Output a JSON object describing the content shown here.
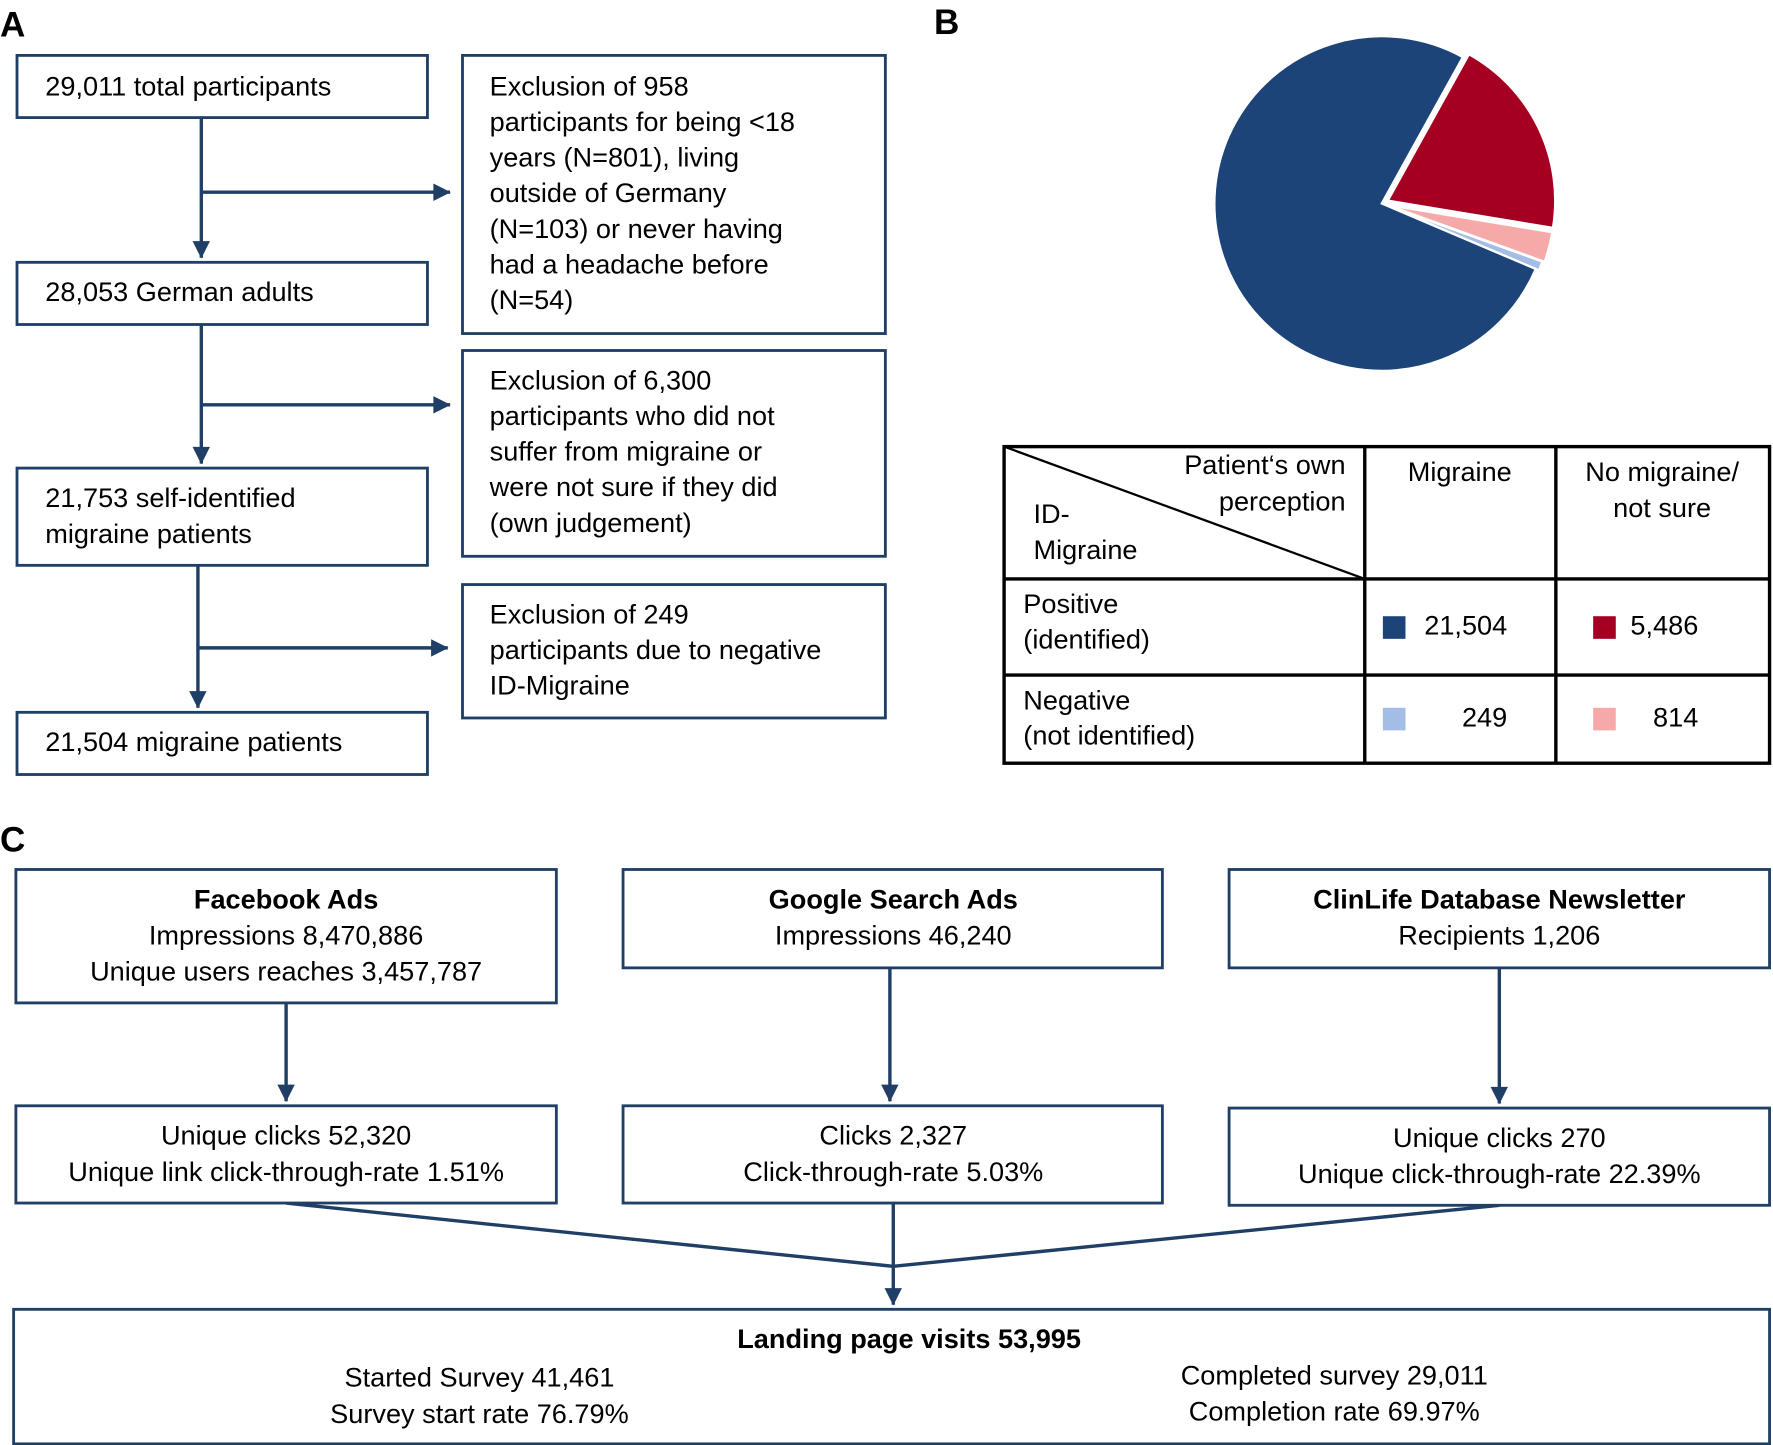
{
  "labels": {
    "a": "A",
    "b": "B",
    "c": "C"
  },
  "flow_a": {
    "steps": [
      [
        "29,011 total participants"
      ],
      [
        "28,053 German adults"
      ],
      [
        "21,753 self-identified",
        "migraine patients"
      ],
      [
        "21,504 migraine patients"
      ]
    ],
    "exclusions": [
      [
        "Exclusion of 958",
        "participants for being <18",
        "years (N=801), living",
        "outside of Germany",
        "(N=103) or never having",
        "had a headache before",
        "(N=54)"
      ],
      [
        "Exclusion of 6,300",
        "participants who did not",
        "suffer from migraine or",
        "were not sure if they did",
        "(own judgement)"
      ],
      [
        "Exclusion of 249",
        "participants due to negative",
        "ID-Migraine"
      ]
    ]
  },
  "chart_data": {
    "type": "pie",
    "values": [
      21504,
      5486,
      249,
      814
    ],
    "value_labels": [
      "21,504",
      "5,486",
      "249",
      "814"
    ],
    "colors": [
      "#1c4479",
      "#a50021",
      "#a3bde6",
      "#f6a9a9"
    ]
  },
  "table": {
    "corner_top": [
      "Patient‘s own",
      "perception"
    ],
    "corner_bottom": [
      "ID-",
      "Migraine"
    ],
    "columns": [
      [
        "Migraine"
      ],
      [
        "No migraine/",
        "not sure"
      ]
    ],
    "rows": [
      [
        "Positive",
        "(identified)"
      ],
      [
        "Negative",
        "(not identified)"
      ]
    ]
  },
  "flow_c": {
    "sources": [
      {
        "title": "Facebook Ads",
        "lines": [
          "Impressions 8,470,886",
          "Unique users reaches 3,457,787"
        ]
      },
      {
        "title": "Google Search Ads",
        "lines": [
          "Impressions 46,240"
        ]
      },
      {
        "title": "ClinLife Database Newsletter",
        "lines": [
          "Recipients 1,206"
        ]
      }
    ],
    "results": [
      [
        "Unique clicks 52,320",
        "Unique link click-through-rate 1.51%"
      ],
      [
        "Clicks 2,327",
        "Click-through-rate 5.03%"
      ],
      [
        "Unique clicks 270",
        "Unique click-through-rate 22.39%"
      ]
    ],
    "landing": {
      "title": "Landing page visits 53,995",
      "left": [
        "Started Survey 41,461",
        "Survey start rate 76.79%"
      ],
      "right": [
        "Completed survey 29,011",
        "Completion rate 69.97%"
      ]
    }
  }
}
